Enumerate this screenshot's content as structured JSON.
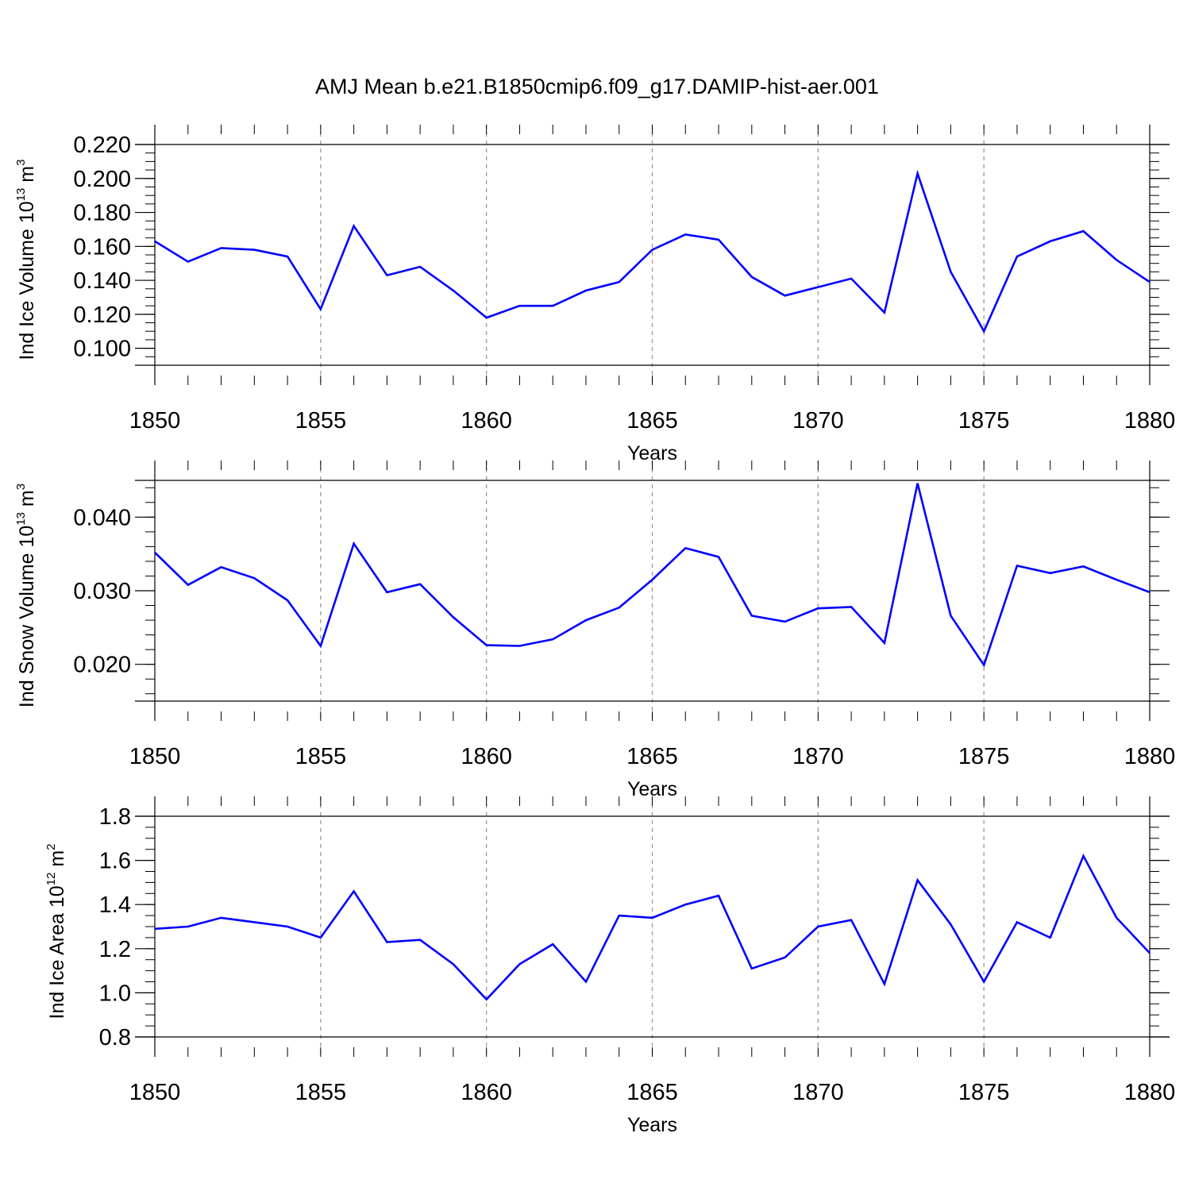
{
  "title": "AMJ Mean b.e21.B1850cmip6.f09_g17.DAMIP-hist-aer.001",
  "line_color": "#0000ff",
  "chart_data": [
    {
      "type": "line",
      "ylabel": {
        "prefix": "Ind Ice Volume 10",
        "exponent": "13",
        "unit": " m",
        "unit_exponent": "3"
      },
      "xlabel": "Years",
      "xlim": [
        1850,
        1880
      ],
      "ylim": [
        0.09,
        0.22
      ],
      "y_ticks": [
        "0.100",
        "0.120",
        "0.140",
        "0.160",
        "0.180",
        "0.200",
        "0.220"
      ],
      "y_tick_values": [
        0.1,
        0.12,
        0.14,
        0.16,
        0.18,
        0.2,
        0.22
      ],
      "y_minor_step": 0.005,
      "x_ticks": [
        "1850",
        "1855",
        "1860",
        "1865",
        "1870",
        "1875",
        "1880"
      ],
      "x_tick_values": [
        1850,
        1855,
        1860,
        1865,
        1870,
        1875,
        1880
      ],
      "grid": "vertical dashed at major x ticks",
      "x": [
        1850,
        1851,
        1852,
        1853,
        1854,
        1855,
        1856,
        1857,
        1858,
        1859,
        1860,
        1861,
        1862,
        1863,
        1864,
        1865,
        1866,
        1867,
        1868,
        1869,
        1870,
        1871,
        1872,
        1873,
        1874,
        1875,
        1876,
        1877,
        1878,
        1879,
        1880
      ],
      "values": [
        0.163,
        0.151,
        0.159,
        0.158,
        0.154,
        0.123,
        0.172,
        0.143,
        0.148,
        0.134,
        0.118,
        0.125,
        0.125,
        0.134,
        0.139,
        0.158,
        0.167,
        0.164,
        0.142,
        0.131,
        0.136,
        0.141,
        0.121,
        0.203,
        0.145,
        0.11,
        0.154,
        0.163,
        0.169,
        0.152,
        0.139
      ]
    },
    {
      "type": "line",
      "ylabel": {
        "prefix": "Ind Snow Volume 10",
        "exponent": "13",
        "unit": " m",
        "unit_exponent": "3"
      },
      "xlabel": "Years",
      "xlim": [
        1850,
        1880
      ],
      "ylim": [
        0.015,
        0.045
      ],
      "y_ticks": [
        "0.020",
        "0.030",
        "0.040"
      ],
      "y_tick_values": [
        0.02,
        0.03,
        0.04
      ],
      "y_minor_step": 0.002,
      "x_ticks": [
        "1850",
        "1855",
        "1860",
        "1865",
        "1870",
        "1875",
        "1880"
      ],
      "x_tick_values": [
        1850,
        1855,
        1860,
        1865,
        1870,
        1875,
        1880
      ],
      "grid": "vertical dashed at major x ticks",
      "x": [
        1850,
        1851,
        1852,
        1853,
        1854,
        1855,
        1856,
        1857,
        1858,
        1859,
        1860,
        1861,
        1862,
        1863,
        1864,
        1865,
        1866,
        1867,
        1868,
        1869,
        1870,
        1871,
        1872,
        1873,
        1874,
        1875,
        1876,
        1877,
        1878,
        1879,
        1880
      ],
      "values": [
        0.0352,
        0.0308,
        0.0332,
        0.0317,
        0.0287,
        0.0225,
        0.0364,
        0.0298,
        0.0309,
        0.0264,
        0.0226,
        0.0225,
        0.0234,
        0.026,
        0.0277,
        0.0315,
        0.0358,
        0.0346,
        0.0266,
        0.0258,
        0.0276,
        0.0278,
        0.0229,
        0.0446,
        0.0266,
        0.0199,
        0.0334,
        0.0324,
        0.0333,
        0.0315,
        0.0298
      ]
    },
    {
      "type": "line",
      "ylabel": {
        "prefix": "Ind Ice Area 10",
        "exponent": "12",
        "unit": " m",
        "unit_exponent": "2"
      },
      "xlabel": "Years",
      "xlim": [
        1850,
        1880
      ],
      "ylim": [
        0.8,
        1.8
      ],
      "y_ticks": [
        "0.8",
        "1.0",
        "1.2",
        "1.4",
        "1.6",
        "1.8"
      ],
      "y_tick_values": [
        0.8,
        1.0,
        1.2,
        1.4,
        1.6,
        1.8
      ],
      "y_minor_step": 0.05,
      "x_ticks": [
        "1850",
        "1855",
        "1860",
        "1865",
        "1870",
        "1875",
        "1880"
      ],
      "x_tick_values": [
        1850,
        1855,
        1860,
        1865,
        1870,
        1875,
        1880
      ],
      "grid": "vertical dashed at major x ticks",
      "x": [
        1850,
        1851,
        1852,
        1853,
        1854,
        1855,
        1856,
        1857,
        1858,
        1859,
        1860,
        1861,
        1862,
        1863,
        1864,
        1865,
        1866,
        1867,
        1868,
        1869,
        1870,
        1871,
        1872,
        1873,
        1874,
        1875,
        1876,
        1877,
        1878,
        1879,
        1880
      ],
      "values": [
        1.29,
        1.3,
        1.34,
        1.32,
        1.3,
        1.25,
        1.46,
        1.23,
        1.24,
        1.13,
        0.97,
        1.13,
        1.22,
        1.05,
        1.35,
        1.34,
        1.4,
        1.44,
        1.11,
        1.16,
        1.3,
        1.33,
        1.04,
        1.51,
        1.31,
        1.05,
        1.32,
        1.25,
        1.62,
        1.34,
        1.18
      ]
    }
  ]
}
